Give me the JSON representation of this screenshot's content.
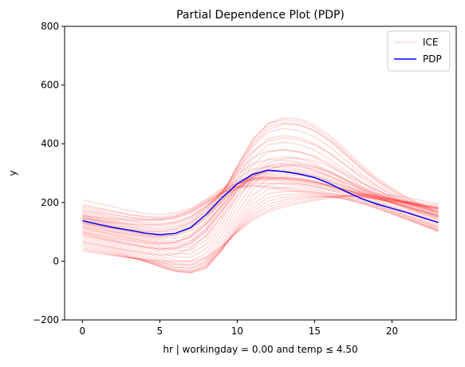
{
  "chart_data": {
    "type": "line",
    "title": "Partial Dependence Plot (PDP)",
    "xlabel": "hr | workingday = 0.00 and temp ≤ 4.50",
    "ylabel": "y",
    "xlim": [
      -1.15,
      24.15
    ],
    "ylim": [
      -200,
      800
    ],
    "xticks": [
      0,
      5,
      10,
      15,
      20
    ],
    "yticks": [
      -200,
      0,
      200,
      400,
      600,
      800
    ],
    "legend_position": "upper right",
    "grid": false,
    "legend": [
      {
        "label": "ICE",
        "color": "#ff0000",
        "opacity": 0.15
      },
      {
        "label": "PDP",
        "color": "#0000ff",
        "opacity": 1
      }
    ],
    "x": [
      0,
      1,
      2,
      3,
      4,
      5,
      6,
      7,
      8,
      9,
      10,
      11,
      12,
      13,
      14,
      15,
      16,
      17,
      18,
      19,
      20,
      21,
      22,
      23
    ],
    "series": [
      {
        "name": "PDP",
        "color": "#0000ff",
        "values": [
          138,
          126,
          115,
          106,
          96,
          90,
          95,
          115,
          160,
          215,
          263,
          296,
          310,
          305,
          297,
          285,
          264,
          238,
          214,
          195,
          180,
          165,
          148,
          132
        ]
      }
    ],
    "ice_series": [
      {
        "values": [
          209,
          197,
          185,
          172,
          163,
          158,
          165,
          180,
          210,
          248,
          275,
          285,
          287,
          283,
          278,
          270,
          258,
          245,
          232,
          222,
          214,
          206,
          198,
          190
        ]
      },
      {
        "values": [
          193,
          182,
          171,
          160,
          153,
          150,
          158,
          176,
          208,
          243,
          268,
          280,
          283,
          279,
          273,
          265,
          253,
          240,
          228,
          218,
          209,
          201,
          193,
          185
        ]
      },
      {
        "values": [
          182,
          171,
          160,
          150,
          142,
          138,
          145,
          165,
          198,
          234,
          262,
          276,
          280,
          277,
          271,
          263,
          252,
          239,
          226,
          216,
          206,
          198,
          190,
          182
        ]
      },
      {
        "values": [
          173,
          162,
          151,
          141,
          133,
          128,
          134,
          153,
          190,
          230,
          262,
          280,
          286,
          284,
          278,
          270,
          258,
          244,
          230,
          219,
          208,
          199,
          190,
          181
        ]
      },
      {
        "values": [
          168,
          157,
          146,
          136,
          127,
          121,
          127,
          147,
          186,
          231,
          268,
          290,
          298,
          297,
          292,
          284,
          270,
          254,
          238,
          224,
          211,
          200,
          189,
          179
        ]
      },
      {
        "values": [
          162,
          151,
          139,
          128,
          119,
          112,
          118,
          140,
          183,
          236,
          282,
          312,
          322,
          320,
          314,
          304,
          287,
          267,
          246,
          228,
          212,
          198,
          185,
          172
        ]
      },
      {
        "values": [
          158,
          147,
          135,
          124,
          114,
          106,
          111,
          133,
          178,
          238,
          295,
          332,
          346,
          344,
          337,
          325,
          305,
          280,
          254,
          232,
          213,
          196,
          181,
          166
        ]
      },
      {
        "values": [
          155,
          143,
          131,
          119,
          108,
          99,
          103,
          124,
          170,
          237,
          303,
          352,
          376,
          379,
          372,
          358,
          333,
          302,
          270,
          243,
          220,
          200,
          182,
          165
        ]
      },
      {
        "values": [
          152,
          140,
          127,
          115,
          103,
          93,
          95,
          114,
          160,
          234,
          312,
          374,
          410,
          420,
          413,
          396,
          366,
          328,
          290,
          257,
          228,
          204,
          183,
          164
        ]
      },
      {
        "values": [
          150,
          138,
          124,
          111,
          98,
          86,
          86,
          102,
          148,
          230,
          320,
          398,
          448,
          467,
          463,
          444,
          410,
          364,
          318,
          278,
          244,
          214,
          188,
          166
        ]
      },
      {
        "values": [
          147,
          134,
          120,
          106,
          92,
          79,
          77,
          91,
          136,
          224,
          325,
          414,
          470,
          488,
          484,
          464,
          427,
          380,
          330,
          286,
          249,
          217,
          189,
          165
        ]
      },
      {
        "values": [
          145,
          132,
          117,
          102,
          87,
          73,
          68,
          80,
          124,
          215,
          322,
          415,
          468,
          482,
          476,
          455,
          418,
          371,
          322,
          278,
          241,
          209,
          181,
          157
        ]
      },
      {
        "values": [
          140,
          127,
          112,
          97,
          82,
          67,
          60,
          70,
          112,
          203,
          312,
          405,
          458,
          472,
          466,
          445,
          409,
          363,
          314,
          271,
          234,
          202,
          174,
          150
        ]
      },
      {
        "values": [
          135,
          122,
          107,
          92,
          77,
          61,
          52,
          60,
          100,
          190,
          298,
          390,
          440,
          452,
          445,
          424,
          389,
          345,
          299,
          259,
          224,
          193,
          166,
          142
        ]
      },
      {
        "values": [
          130,
          117,
          102,
          87,
          71,
          54,
          44,
          49,
          86,
          174,
          280,
          370,
          418,
          428,
          421,
          400,
          367,
          327,
          284,
          247,
          214,
          185,
          159,
          136
        ]
      },
      {
        "values": [
          126,
          113,
          98,
          82,
          65,
          47,
          35,
          38,
          72,
          158,
          262,
          350,
          396,
          405,
          398,
          378,
          347,
          310,
          270,
          235,
          204,
          177,
          152,
          130
        ]
      },
      {
        "values": [
          121,
          107,
          92,
          76,
          58,
          39,
          25,
          26,
          58,
          141,
          243,
          329,
          372,
          380,
          373,
          354,
          326,
          293,
          256,
          224,
          196,
          170,
          146,
          125
        ]
      },
      {
        "values": [
          116,
          102,
          86,
          69,
          50,
          30,
          14,
          13,
          43,
          124,
          224,
          308,
          349,
          356,
          349,
          332,
          307,
          277,
          244,
          214,
          188,
          164,
          141,
          120
        ]
      },
      {
        "values": [
          110,
          96,
          79,
          61,
          41,
          20,
          2,
          0,
          27,
          106,
          204,
          286,
          325,
          331,
          325,
          310,
          288,
          262,
          233,
          206,
          181,
          158,
          136,
          115
        ]
      },
      {
        "values": [
          104,
          89,
          72,
          53,
          32,
          10,
          -10,
          -13,
          12,
          88,
          184,
          264,
          302,
          307,
          302,
          290,
          271,
          248,
          223,
          199,
          175,
          153,
          132,
          111
        ]
      },
      {
        "values": [
          98,
          83,
          65,
          45,
          23,
          0,
          -20,
          -24,
          -2,
          71,
          165,
          243,
          280,
          285,
          281,
          271,
          255,
          236,
          214,
          192,
          170,
          149,
          128,
          107
        ]
      },
      {
        "values": [
          92,
          77,
          58,
          37,
          15,
          -8,
          -28,
          -33,
          -13,
          56,
          148,
          225,
          261,
          266,
          264,
          256,
          242,
          226,
          207,
          187,
          166,
          145,
          125,
          104
        ]
      },
      {
        "values": [
          85,
          70,
          51,
          30,
          8,
          -14,
          -33,
          -38,
          -20,
          45,
          134,
          209,
          245,
          251,
          250,
          244,
          232,
          218,
          201,
          182,
          162,
          142,
          122,
          102
        ]
      },
      {
        "values": [
          78,
          63,
          44,
          24,
          3,
          -18,
          -35,
          -40,
          -24,
          38,
          122,
          194,
          230,
          238,
          239,
          235,
          225,
          213,
          198,
          180,
          161,
          141,
          121,
          101
        ]
      },
      {
        "values": [
          70,
          56,
          38,
          19,
          0,
          -19,
          -34,
          -38,
          -22,
          36,
          114,
          181,
          216,
          226,
          229,
          228,
          221,
          211,
          198,
          182,
          164,
          145,
          125,
          105
        ]
      },
      {
        "values": [
          62,
          49,
          33,
          16,
          0,
          -16,
          -29,
          -32,
          -16,
          38,
          109,
          171,
          205,
          217,
          222,
          223,
          219,
          212,
          202,
          189,
          172,
          154,
          135,
          115
        ]
      },
      {
        "values": [
          54,
          42,
          28,
          14,
          1,
          -11,
          -21,
          -23,
          -8,
          41,
          105,
          161,
          194,
          208,
          216,
          220,
          220,
          217,
          210,
          199,
          185,
          168,
          150,
          131
        ]
      },
      {
        "values": [
          46,
          36,
          24,
          13,
          3,
          -6,
          -13,
          -14,
          0,
          45,
          103,
          154,
          185,
          200,
          210,
          217,
          221,
          222,
          219,
          212,
          200,
          186,
          170,
          152
        ]
      },
      {
        "values": [
          40,
          31,
          21,
          12,
          5,
          -1,
          -6,
          -6,
          8,
          48,
          100,
          146,
          175,
          191,
          202,
          211,
          218,
          222,
          224,
          221,
          213,
          202,
          189,
          174
        ]
      },
      {
        "values": [
          35,
          27,
          19,
          12,
          7,
          3,
          0,
          1,
          14,
          51,
          98,
          140,
          168,
          184,
          196,
          206,
          215,
          222,
          227,
          228,
          224,
          216,
          206,
          194
        ]
      },
      {
        "values": [
          145,
          138,
          132,
          127,
          124,
          124,
          132,
          152,
          186,
          222,
          248,
          258,
          256,
          249,
          242,
          236,
          230,
          224,
          218,
          211,
          204,
          196,
          187,
          178
        ]
      },
      {
        "values": [
          155,
          149,
          144,
          141,
          140,
          142,
          152,
          172,
          203,
          233,
          252,
          256,
          251,
          243,
          236,
          231,
          227,
          224,
          221,
          216,
          209,
          200,
          190,
          180
        ]
      },
      {
        "values": [
          128,
          120,
          112,
          106,
          102,
          101,
          109,
          131,
          170,
          215,
          252,
          272,
          276,
          271,
          264,
          256,
          246,
          236,
          225,
          214,
          203,
          191,
          179,
          167
        ]
      },
      {
        "values": [
          118,
          109,
          100,
          92,
          86,
          83,
          89,
          110,
          152,
          204,
          251,
          281,
          292,
          290,
          283,
          273,
          259,
          243,
          227,
          212,
          198,
          184,
          170,
          157
        ]
      },
      {
        "values": [
          100,
          90,
          80,
          71,
          63,
          58,
          63,
          84,
          128,
          188,
          245,
          287,
          309,
          313,
          308,
          297,
          279,
          258,
          237,
          217,
          199,
          182,
          166,
          150
        ]
      },
      {
        "values": [
          88,
          78,
          67,
          57,
          48,
          42,
          46,
          66,
          110,
          174,
          238,
          287,
          316,
          325,
          322,
          311,
          292,
          268,
          244,
          222,
          202,
          183,
          165,
          148
        ]
      },
      {
        "values": [
          66,
          56,
          46,
          36,
          27,
          21,
          24,
          43,
          87,
          152,
          220,
          276,
          312,
          327,
          328,
          319,
          300,
          275,
          248,
          223,
          201,
          180,
          161,
          143
        ]
      },
      {
        "values": [
          175,
          166,
          157,
          149,
          143,
          141,
          148,
          166,
          197,
          230,
          254,
          264,
          266,
          263,
          258,
          251,
          242,
          232,
          222,
          212,
          203,
          194,
          185,
          176
        ]
      },
      {
        "values": [
          188,
          178,
          168,
          158,
          150,
          146,
          152,
          170,
          202,
          238,
          266,
          280,
          284,
          282,
          277,
          269,
          257,
          244,
          231,
          220,
          210,
          201,
          192,
          183
        ]
      },
      {
        "values": [
          132,
          122,
          111,
          101,
          92,
          86,
          91,
          111,
          152,
          205,
          255,
          290,
          306,
          307,
          301,
          291,
          274,
          254,
          234,
          216,
          199,
          184,
          169,
          155
        ]
      },
      {
        "values": [
          112,
          101,
          90,
          79,
          69,
          62,
          65,
          85,
          128,
          188,
          250,
          298,
          326,
          335,
          332,
          321,
          302,
          277,
          252,
          229,
          208,
          189,
          171,
          154
        ]
      },
      {
        "values": [
          95,
          84,
          72,
          60,
          49,
          41,
          42,
          60,
          104,
          170,
          240,
          298,
          334,
          350,
          351,
          342,
          322,
          295,
          267,
          241,
          217,
          195,
          175,
          157
        ]
      }
    ]
  }
}
